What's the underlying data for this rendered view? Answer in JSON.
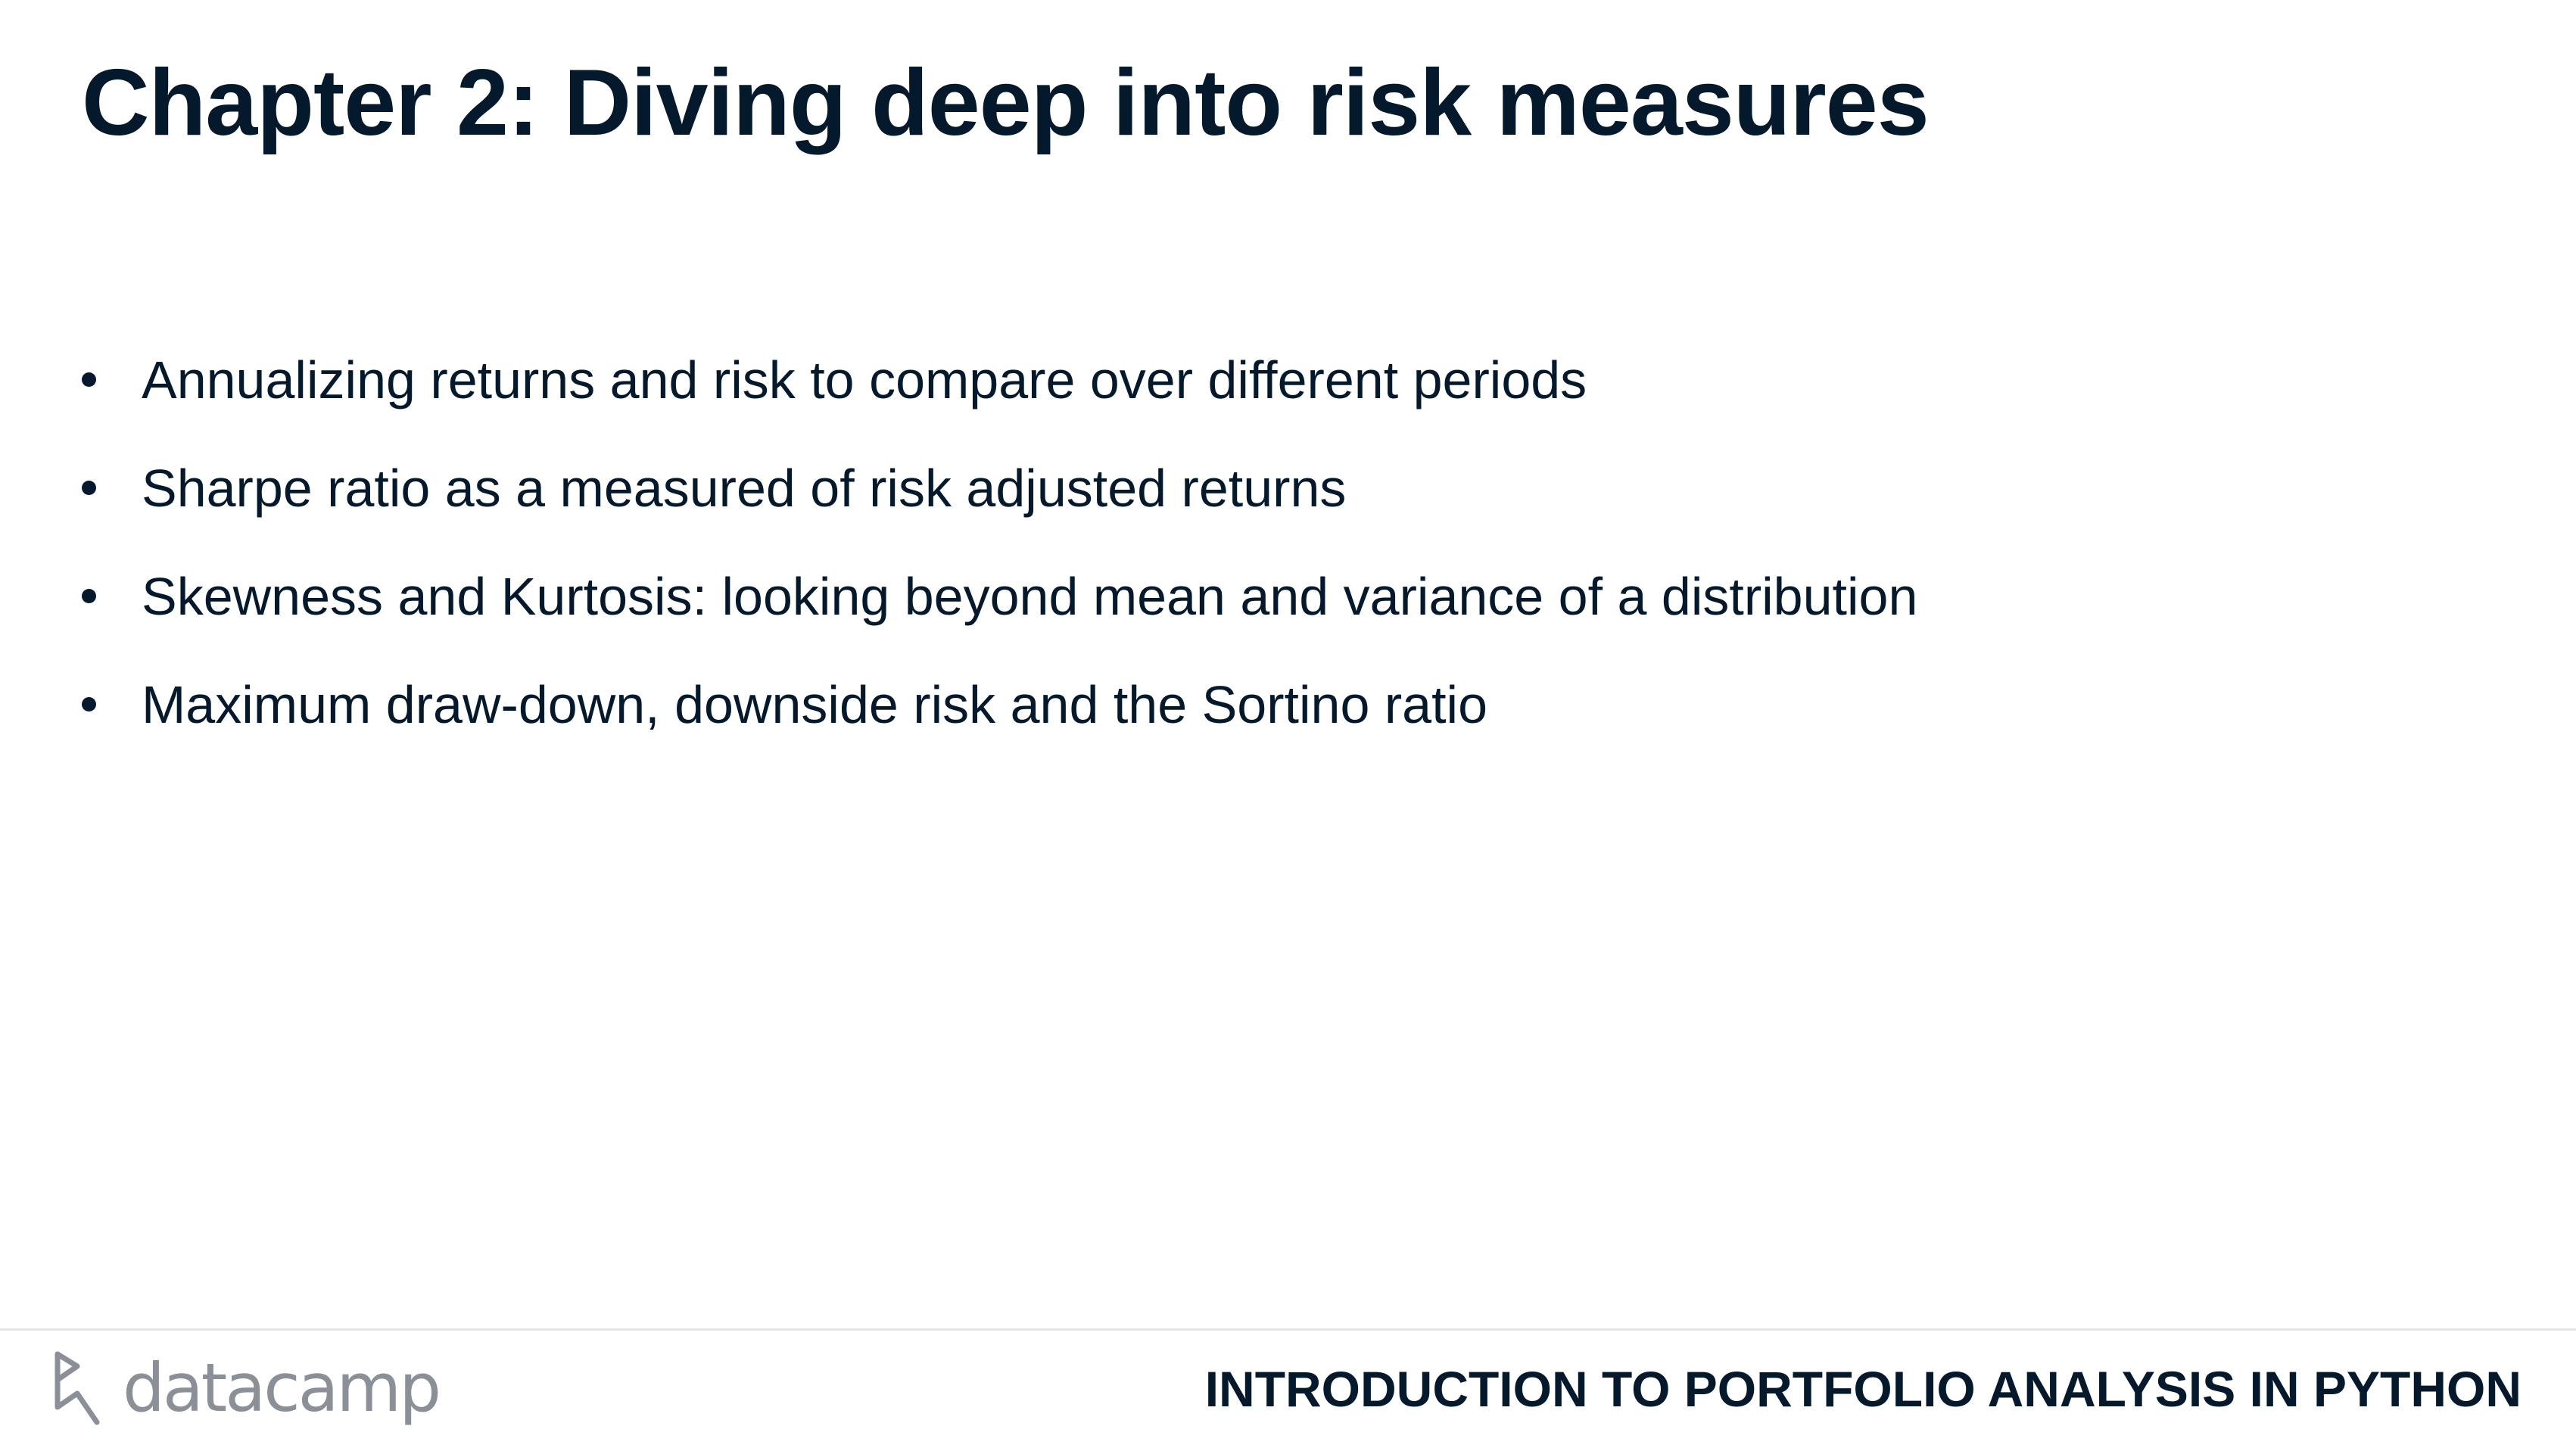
{
  "slide": {
    "title": "Chapter 2: Diving deep into risk measures",
    "bullets": [
      "Annualizing returns and risk to compare over different periods",
      "Sharpe ratio as a measured of risk adjusted returns",
      "Skewness and Kurtosis: looking beyond mean and variance of a distribution",
      "Maximum draw-down, downside risk and the Sortino ratio"
    ]
  },
  "footer": {
    "logo_text": "datacamp",
    "logo_icon": "datacamp-logo-icon",
    "course_title": "INTRODUCTION TO PORTFOLIO ANALYSIS IN PYTHON"
  },
  "colors": {
    "text": "#05192d",
    "logo": "#8a8f98",
    "divider": "#e5e5e5",
    "background": "#ffffff"
  }
}
